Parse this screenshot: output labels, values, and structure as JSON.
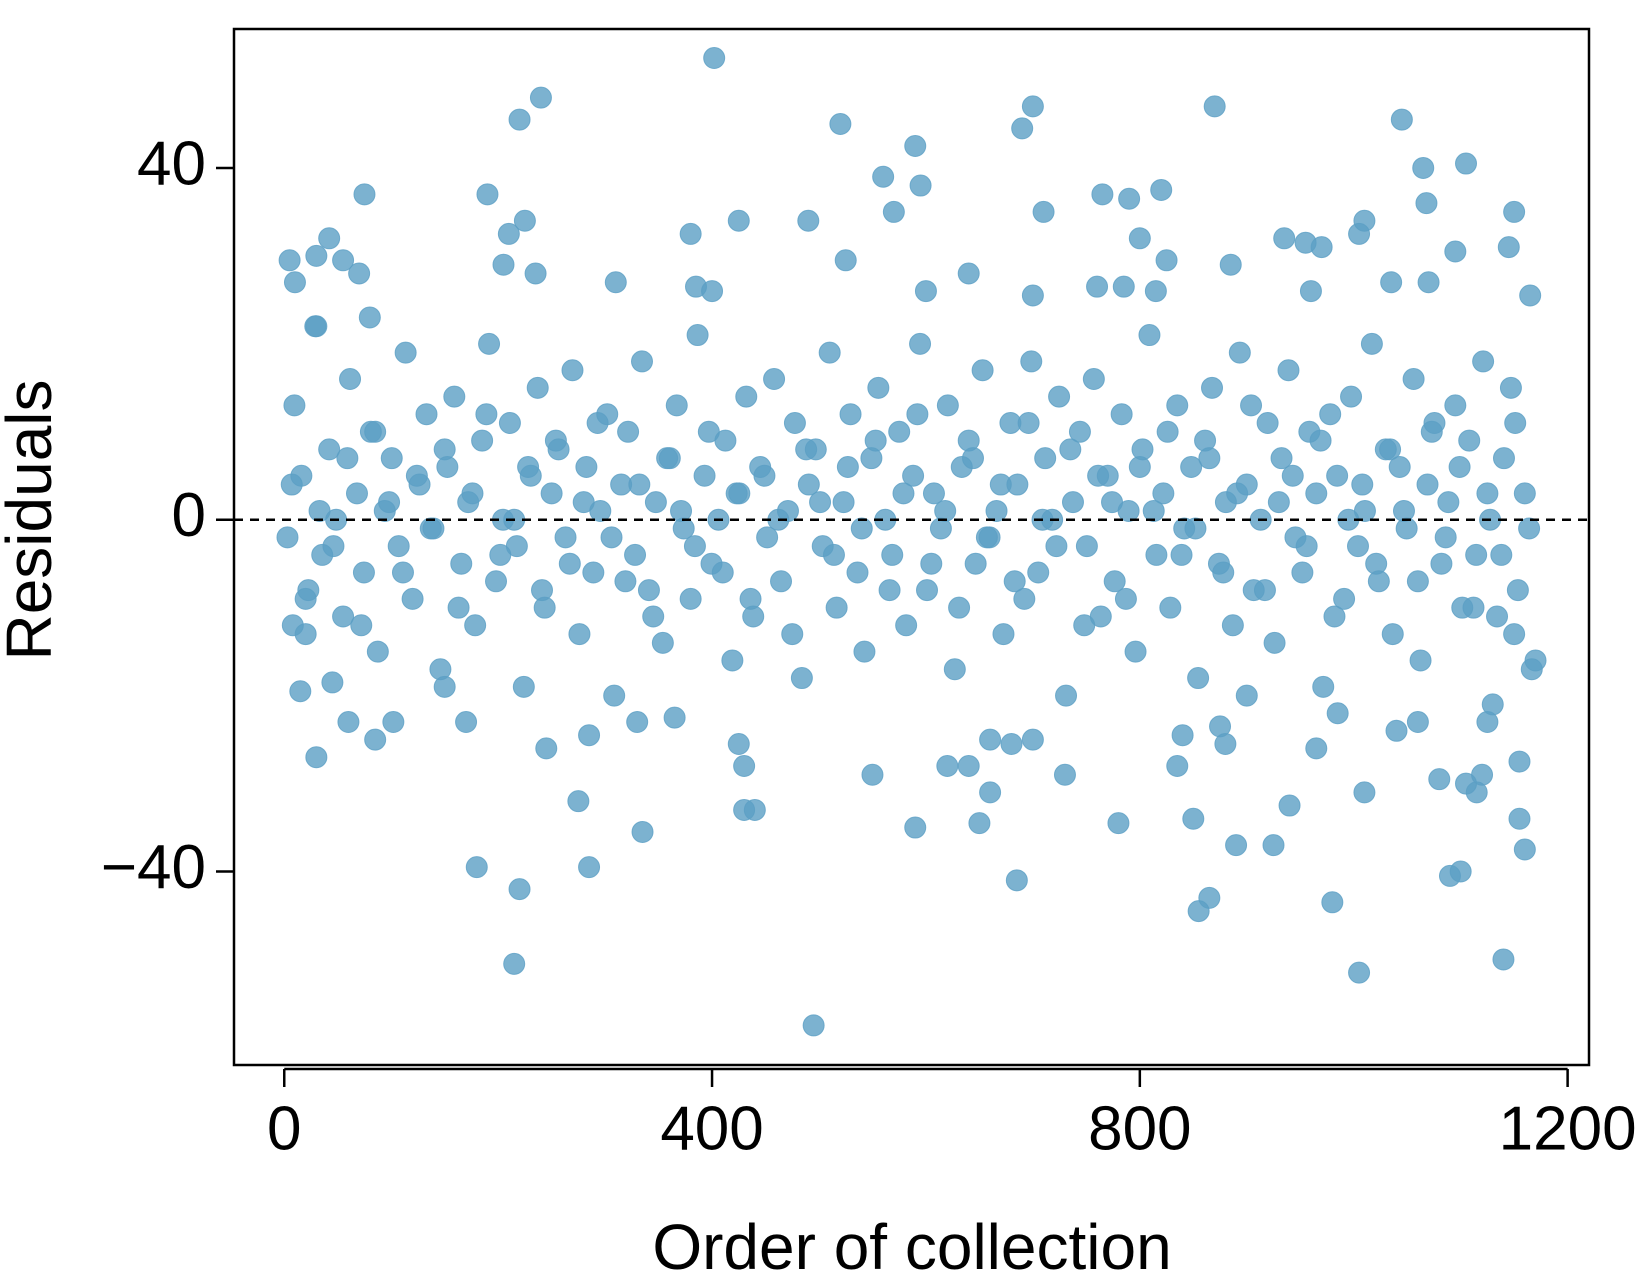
{
  "chart_data": {
    "type": "scatter",
    "xlabel": "Order of collection",
    "ylabel": "Residuals",
    "color": "#5b9fc4",
    "opacity": 0.8,
    "xlim": [
      -47,
      1220
    ],
    "ylim": [
      -62,
      55.8
    ],
    "xticks": [
      0,
      400,
      800,
      1200
    ],
    "yticks": [
      {
        "value": -40,
        "label": "−40"
      },
      0,
      40
    ],
    "hline": 0,
    "x": [
      402,
      240,
      220,
      700,
      690,
      870,
      520,
      1045,
      1105,
      590,
      560,
      595,
      1065,
      75,
      190,
      820,
      765,
      790,
      1068,
      570,
      710,
      1150,
      425,
      490,
      225,
      1010,
      210,
      380,
      42,
      800,
      935,
      955,
      970,
      1005,
      1095,
      1145,
      5,
      30,
      55,
      205,
      525,
      825,
      885,
      10,
      70,
      235,
      310,
      640,
      1035,
      1070,
      385,
      400,
      600,
      700,
      760,
      785,
      815,
      960,
      1165,
      495,
      1005,
      215,
      1140,
      220,
      855,
      865,
      980,
      685,
      1090,
      1100,
      180,
      285,
      335,
      590,
      650,
      780,
      850,
      890,
      925,
      1160,
      1155,
      430,
      440,
      940,
      1010,
      1115,
      275,
      660,
      30,
      85,
      102,
      60,
      170,
      245,
      285,
      425,
      430,
      620,
      640,
      660,
      680,
      730,
      550,
      1105,
      1080,
      1120,
      1155,
      965,
      1125,
      1040,
      880,
      875,
      835,
      840,
      15,
      45,
      20,
      8,
      150,
      330,
      365,
      700,
      900,
      985,
      1060,
      1130,
      1170,
      1150,
      30,
      80,
      3,
      9.5,
      16,
      22.5,
      29,
      35.5,
      42,
      48.5,
      55,
      61.5,
      68,
      74.5,
      81,
      87.5,
      94,
      100.5,
      107,
      113.5,
      120,
      126.5,
      133,
      139.5,
      146,
      152.5,
      159,
      165.5,
      172,
      178.5,
      185,
      191.5,
      198,
      204.5,
      211,
      217.5,
      224,
      230.5,
      237,
      243.5,
      250,
      256.5,
      263,
      269.5,
      276,
      282.5,
      289,
      295.5,
      302,
      308.5,
      315,
      321.5,
      328,
      334.5,
      341,
      347.5,
      354,
      360.5,
      367,
      373.5,
      380,
      386.5,
      393,
      399.5,
      406,
      412.5,
      419,
      425.5,
      432,
      438.5,
      445,
      451.5,
      458,
      464.5,
      471,
      477.5,
      484,
      490.5,
      497,
      503.5,
      510,
      516.5,
      523,
      529.5,
      536,
      542.5,
      549,
      555.5,
      562,
      568.5,
      575,
      581.5,
      588,
      594.5,
      601,
      607.5,
      614,
      620.5,
      627,
      633.5,
      640,
      646.5,
      653,
      659.5,
      666,
      672.5,
      679,
      685.5,
      692,
      698.5,
      705,
      711.5,
      718,
      724.5,
      731,
      737.5,
      744,
      750.5,
      757,
      763.5,
      770,
      776.5,
      783,
      789.5,
      796,
      802.5,
      809,
      815.5,
      822,
      828.5,
      835,
      841.5,
      848,
      854.5,
      861,
      867.5,
      874,
      880.5,
      887,
      893.5,
      900,
      906.5,
      913,
      919.5,
      926,
      932.5,
      939,
      945.5,
      952,
      958.5,
      965,
      971.5,
      978,
      984.5,
      991,
      997.5,
      1004,
      1010.5,
      1017,
      1023.5,
      1030,
      1036.5,
      1043,
      1049.5,
      1056,
      1062.5,
      1069,
      1075.5,
      1082,
      1088.5,
      1095,
      1101.5,
      1108,
      1114.5,
      1121,
      1127.5,
      1134,
      1140.5,
      1147,
      1153.5,
      1160,
      1166.5,
      7,
      20,
      33,
      46,
      59,
      72,
      85,
      98,
      111,
      124,
      137,
      150,
      163,
      176,
      189,
      202,
      215,
      228,
      241,
      254,
      267,
      280,
      293,
      306,
      319,
      332,
      345,
      358,
      371,
      384,
      397,
      410,
      423,
      436,
      449,
      462,
      475,
      488,
      501,
      514,
      527,
      540,
      553,
      566,
      579,
      592,
      605,
      618,
      631,
      644,
      657,
      670,
      683,
      696,
      709,
      722,
      735,
      748,
      761,
      774,
      787,
      800,
      813,
      826,
      839,
      852,
      865,
      878,
      891,
      904,
      917,
      930,
      943,
      956,
      969,
      982,
      995,
      1008,
      1021,
      1034,
      1047,
      1060,
      1073,
      1086,
      1099,
      1112,
      1125,
      1138,
      1151,
      1164
    ],
    "values": [
      52.5,
      48,
      45.5,
      47,
      44.5,
      47,
      45,
      45.5,
      40.5,
      42.5,
      39,
      38,
      40,
      37,
      37,
      37.5,
      37,
      36.5,
      36,
      35,
      35,
      35,
      34,
      34,
      34,
      34,
      32.5,
      32.5,
      32,
      32,
      32,
      31.5,
      31,
      32.5,
      30.5,
      31,
      29.5,
      30,
      29.5,
      29,
      29.5,
      29.5,
      29,
      27,
      28,
      28,
      27,
      28,
      27,
      27,
      26.5,
      26,
      26,
      25.5,
      26.5,
      26.5,
      26,
      26,
      25.5,
      -57.5,
      -51.5,
      -50.5,
      -50,
      -42,
      -44.5,
      -43,
      -43.5,
      -41,
      -40.5,
      -40,
      -39.5,
      -39.5,
      -35.5,
      -35,
      -34.5,
      -34.5,
      -34,
      -37,
      -37,
      -37.5,
      -34,
      -33,
      -33,
      -32.5,
      -31,
      -31,
      -32,
      -31,
      -27,
      -25,
      -23,
      -23,
      -23,
      -26,
      -24.5,
      -25.5,
      -28,
      -28,
      -28,
      -25,
      -25.5,
      -29,
      -29,
      -30,
      -29.5,
      -29,
      -27.5,
      -26,
      -23,
      -24,
      -25.5,
      -23.5,
      -28,
      -24.5,
      -19.5,
      -18.5,
      -13,
      -12,
      -19,
      -23,
      -22.5,
      -25,
      -20,
      -22,
      -23,
      -21,
      -16,
      -13,
      22,
      23,
      -2,
      13,
      5,
      -8,
      22,
      -4,
      8,
      0,
      -11,
      16,
      3,
      -6,
      10,
      -15,
      1,
      7,
      -3,
      19,
      -9,
      4,
      12,
      -1,
      -17,
      6,
      14,
      -5,
      2,
      -12,
      9,
      20,
      -7,
      0,
      11,
      -3,
      -19,
      5,
      15,
      -10,
      3,
      8,
      -2,
      17,
      -13,
      6,
      -6,
      1,
      12,
      -20,
      4,
      10,
      -4,
      18,
      -8,
      2,
      -14,
      7,
      13,
      -1,
      -9,
      21,
      5,
      -5,
      0,
      9,
      -16,
      3,
      14,
      -11,
      6,
      -2,
      16,
      -7,
      1,
      11,
      -18,
      4,
      8,
      -3,
      19,
      -10,
      2,
      12,
      -6,
      -15,
      7,
      15,
      0,
      -4,
      10,
      -12,
      5,
      20,
      -8,
      3,
      -1,
      13,
      -17,
      6,
      9,
      -5,
      17,
      -2,
      1,
      -13,
      11,
      4,
      -9,
      18,
      -6,
      7,
      0,
      14,
      -20,
      2,
      10,
      -3,
      16,
      -11,
      5,
      -7,
      12,
      1,
      -15,
      8,
      21,
      -4,
      3,
      -10,
      13,
      -1,
      6,
      -18,
      9,
      15,
      -5,
      2,
      -12,
      19,
      4,
      -8,
      0,
      11,
      -14,
      7,
      17,
      -2,
      -6,
      10,
      3,
      -19,
      12,
      5,
      -9,
      14,
      -3,
      1,
      20,
      -7,
      8,
      -13,
      6,
      -1,
      16,
      -16,
      4,
      11,
      -5,
      2,
      13,
      -10,
      9,
      -4,
      18,
      0,
      -11,
      7,
      15,
      -8,
      3,
      -17,
      4,
      -9,
      1,
      -3,
      7,
      -12,
      10,
      2,
      -6,
      5,
      -1,
      8,
      -10,
      3,
      12,
      -4,
      0,
      6,
      -8,
      9,
      -5,
      2,
      11,
      -2,
      -7,
      4,
      -11,
      7,
      1,
      -3,
      10,
      -6,
      3,
      -9,
      5,
      0,
      -13,
      8,
      2,
      -4,
      6,
      -1,
      9,
      -8,
      3,
      12,
      -5,
      1,
      -10,
      7,
      -2,
      4,
      -7,
      11,
      0,
      -3,
      8,
      -12,
      5,
      2,
      -9,
      6,
      1,
      10,
      -4,
      -1,
      7,
      -6,
      3,
      13,
      -8,
      2,
      5,
      -3,
      9,
      -11,
      0,
      4,
      -5,
      8,
      1,
      -7,
      10,
      -2,
      6,
      -10,
      3,
      -4,
      11,
      -1
    ]
  }
}
